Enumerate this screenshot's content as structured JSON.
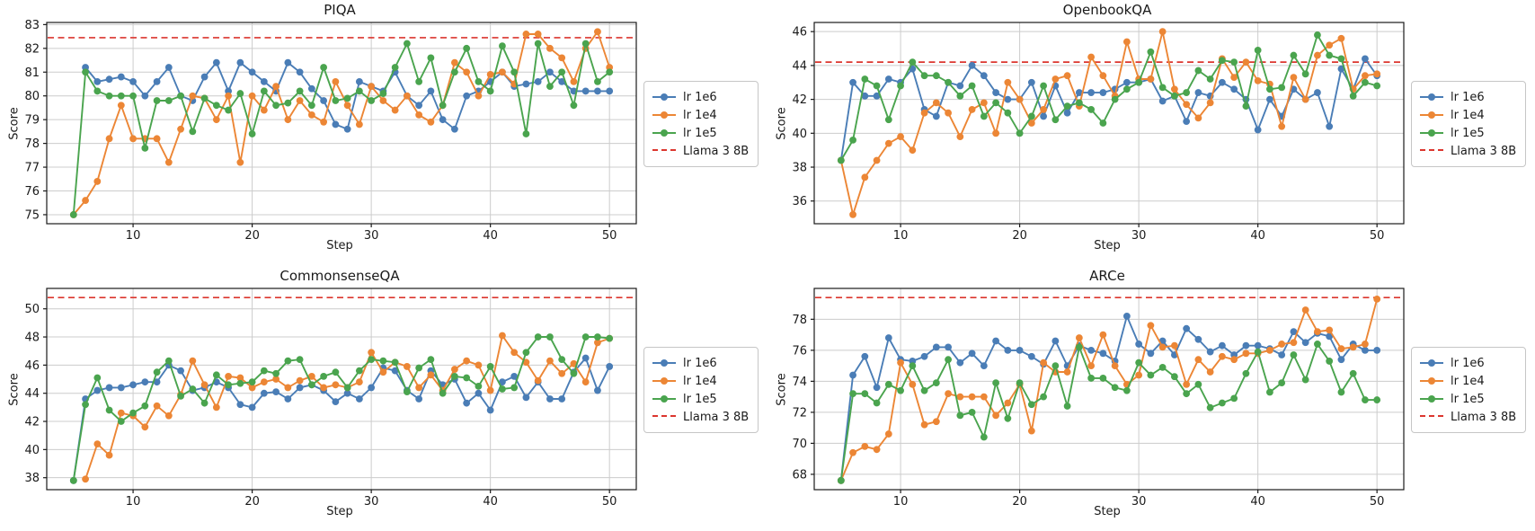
{
  "figure": {
    "background": "#ffffff"
  },
  "legend": {
    "entries": [
      {
        "label": "lr 1e6",
        "color": "#4a7db6",
        "type": "line-marker"
      },
      {
        "label": "lr 1e4",
        "color": "#ec8635",
        "type": "line-marker"
      },
      {
        "label": "lr 1e5",
        "color": "#4aa44e",
        "type": "line-marker"
      },
      {
        "label": "Llama 3 8B",
        "color": "#dc362e",
        "type": "dashed-line"
      }
    ]
  },
  "style": {
    "grid_color": "#cccccc",
    "spine_color": "#1a1a1a",
    "tick_label_color": "#1a1a1a"
  },
  "chart_data": [
    {
      "type": "line",
      "title": "PIQA",
      "xlabel": "Step",
      "ylabel": "Score",
      "x": {
        "start": 5,
        "end": 50,
        "step": 1
      },
      "xlim": [
        2.75,
        52.25
      ],
      "ylim": [
        74.62,
        83.09
      ],
      "xticks": [
        10,
        20,
        30,
        40,
        50
      ],
      "yticks": [
        75,
        76,
        77,
        78,
        79,
        80,
        81,
        82,
        83
      ],
      "baseline": {
        "label": "Llama 3 8B",
        "value": 82.45
      },
      "series": [
        {
          "name": "lr 1e6",
          "values": [
            null,
            81.2,
            80.6,
            80.7,
            80.8,
            80.6,
            80.0,
            80.6,
            81.2,
            80.0,
            79.8,
            80.8,
            81.4,
            80.2,
            81.4,
            81.0,
            80.6,
            80.2,
            81.4,
            81.0,
            80.3,
            79.8,
            78.8,
            78.6,
            80.6,
            80.4,
            80.2,
            81.0,
            80.0,
            79.6,
            80.2,
            79.0,
            78.6,
            80.0,
            80.2,
            80.6,
            81.0,
            80.4,
            80.5,
            80.6,
            81.0,
            80.6,
            80.2,
            80.2,
            80.2,
            80.2
          ]
        },
        {
          "name": "lr 1e4",
          "values": [
            75.0,
            75.6,
            76.4,
            78.2,
            79.6,
            78.2,
            78.2,
            78.2,
            77.2,
            78.6,
            80.0,
            79.9,
            79.0,
            80.0,
            77.2,
            80.0,
            79.4,
            80.4,
            79.0,
            79.8,
            79.2,
            78.9,
            80.6,
            79.6,
            78.8,
            80.4,
            79.8,
            79.4,
            80.0,
            79.2,
            78.9,
            79.6,
            81.4,
            81.0,
            80.0,
            80.9,
            81.0,
            80.5,
            82.6,
            82.6,
            82.0,
            81.6,
            80.6,
            82.0,
            82.7,
            81.2
          ]
        },
        {
          "name": "lr 1e5",
          "values": [
            75.0,
            81.0,
            80.2,
            80.0,
            80.0,
            80.0,
            77.8,
            79.8,
            79.8,
            80.0,
            78.5,
            79.9,
            79.6,
            79.4,
            80.1,
            78.4,
            80.2,
            79.6,
            79.7,
            80.2,
            79.6,
            81.2,
            79.8,
            79.9,
            80.2,
            79.8,
            80.1,
            81.2,
            82.2,
            80.6,
            81.6,
            79.6,
            81.0,
            82.0,
            80.6,
            80.2,
            82.1,
            81.0,
            78.4,
            82.2,
            80.4,
            81.0,
            79.6,
            82.2,
            80.6,
            81.0
          ]
        }
      ]
    },
    {
      "type": "line",
      "title": "OpenbookQA",
      "xlabel": "Step",
      "ylabel": "Score",
      "x": {
        "start": 5,
        "end": 50,
        "step": 1
      },
      "xlim": [
        2.75,
        52.25
      ],
      "ylim": [
        34.66,
        46.54
      ],
      "xticks": [
        10,
        20,
        30,
        40,
        50
      ],
      "yticks": [
        36,
        38,
        40,
        42,
        44,
        46
      ],
      "baseline": {
        "label": "Llama 3 8B",
        "value": 44.2
      },
      "series": [
        {
          "name": "lr 1e6",
          "values": [
            38.4,
            43.0,
            42.2,
            42.2,
            43.2,
            43.0,
            43.8,
            41.4,
            41.0,
            43.0,
            42.8,
            44.0,
            43.4,
            42.4,
            42.0,
            42.0,
            43.0,
            41.0,
            42.8,
            41.2,
            42.4,
            42.4,
            42.4,
            42.6,
            43.0,
            43.0,
            43.2,
            41.9,
            42.2,
            40.7,
            42.4,
            42.2,
            43.0,
            42.6,
            42.0,
            40.2,
            42.0,
            41.0,
            42.6,
            42.0,
            42.4,
            40.4,
            43.8,
            42.6,
            44.4,
            43.4
          ]
        },
        {
          "name": "lr 1e4",
          "values": [
            38.4,
            35.2,
            37.4,
            38.4,
            39.4,
            39.8,
            39.0,
            41.2,
            41.8,
            41.2,
            39.8,
            41.4,
            41.8,
            40.0,
            43.0,
            42.0,
            40.6,
            41.4,
            43.2,
            43.4,
            41.6,
            44.5,
            43.4,
            42.2,
            45.4,
            43.2,
            43.2,
            46.0,
            42.6,
            41.7,
            40.9,
            41.8,
            44.4,
            43.3,
            44.2,
            43.1,
            42.9,
            40.4,
            43.3,
            42.0,
            44.6,
            45.2,
            45.6,
            42.6,
            43.4,
            43.5
          ]
        },
        {
          "name": "lr 1e5",
          "values": [
            38.4,
            39.6,
            43.2,
            42.8,
            40.8,
            42.8,
            44.2,
            43.4,
            43.4,
            43.0,
            42.2,
            42.8,
            41.0,
            41.8,
            41.2,
            40.0,
            41.0,
            42.8,
            40.8,
            41.6,
            41.8,
            41.4,
            40.6,
            42.0,
            42.6,
            43.0,
            44.8,
            42.7,
            42.2,
            42.4,
            43.7,
            43.2,
            44.3,
            44.2,
            41.6,
            44.9,
            42.6,
            42.7,
            44.6,
            43.5,
            45.8,
            44.6,
            44.4,
            42.2,
            43.0,
            42.8
          ]
        }
      ]
    },
    {
      "type": "line",
      "title": "CommonsenseQA",
      "xlabel": "Step",
      "ylabel": "Score",
      "x": {
        "start": 5,
        "end": 50,
        "step": 1
      },
      "xlim": [
        2.75,
        52.25
      ],
      "ylim": [
        37.15,
        51.45
      ],
      "xticks": [
        10,
        20,
        30,
        40,
        50
      ],
      "yticks": [
        38,
        40,
        42,
        44,
        46,
        48,
        50
      ],
      "baseline": {
        "label": "Llama 3 8B",
        "value": 50.8
      },
      "series": [
        {
          "name": "lr 1e6",
          "values": [
            37.8,
            43.6,
            44.2,
            44.4,
            44.4,
            44.6,
            44.8,
            44.8,
            46.0,
            45.6,
            44.2,
            44.4,
            44.8,
            44.4,
            43.2,
            43.0,
            44.0,
            44.1,
            43.6,
            44.4,
            44.6,
            44.2,
            43.4,
            44.0,
            43.6,
            44.4,
            45.8,
            45.6,
            44.2,
            43.6,
            45.6,
            44.6,
            45.0,
            43.3,
            44.0,
            42.8,
            44.8,
            45.2,
            43.7,
            44.8,
            43.6,
            43.6,
            45.5,
            46.5,
            44.2,
            45.9
          ]
        },
        {
          "name": "lr 1e4",
          "values": [
            null,
            37.9,
            40.4,
            39.6,
            42.6,
            42.4,
            41.6,
            43.1,
            42.4,
            43.9,
            46.3,
            44.6,
            43.0,
            45.2,
            45.1,
            44.4,
            44.8,
            45.0,
            44.4,
            44.9,
            45.2,
            44.4,
            44.6,
            44.4,
            44.8,
            46.9,
            45.5,
            46.2,
            45.9,
            44.4,
            45.3,
            44.2,
            45.7,
            46.3,
            46.0,
            44.2,
            48.1,
            46.9,
            46.2,
            44.9,
            46.3,
            45.4,
            46.1,
            44.8,
            47.6,
            47.9
          ]
        },
        {
          "name": "lr 1e5",
          "values": [
            37.8,
            43.2,
            45.1,
            42.8,
            42.0,
            42.6,
            43.1,
            45.5,
            46.3,
            43.8,
            44.3,
            43.3,
            45.3,
            44.6,
            44.7,
            44.8,
            45.6,
            45.4,
            46.3,
            46.4,
            44.6,
            45.2,
            45.5,
            44.4,
            45.6,
            46.4,
            46.3,
            46.2,
            44.1,
            45.8,
            46.4,
            44.0,
            45.2,
            45.1,
            44.5,
            45.9,
            44.3,
            44.4,
            46.9,
            48.0,
            48.0,
            46.4,
            45.4,
            48.0,
            48.0,
            47.9
          ]
        }
      ]
    },
    {
      "type": "line",
      "title": "ARCe",
      "xlabel": "Step",
      "ylabel": "Score",
      "x": {
        "start": 5,
        "end": 50,
        "step": 1
      },
      "xlim": [
        2.75,
        52.25
      ],
      "ylim": [
        67.01,
        79.99
      ],
      "xticks": [
        10,
        20,
        30,
        40,
        50
      ],
      "yticks": [
        68,
        70,
        72,
        74,
        76,
        78
      ],
      "baseline": {
        "label": "Llama 3 8B",
        "value": 79.4
      },
      "series": [
        {
          "name": "lr 1e6",
          "values": [
            67.6,
            74.4,
            75.6,
            73.6,
            76.8,
            75.4,
            75.3,
            75.6,
            76.2,
            76.2,
            75.2,
            75.8,
            75.0,
            76.6,
            76.0,
            76.0,
            75.6,
            75.1,
            76.6,
            75.0,
            76.3,
            76.0,
            75.8,
            75.3,
            78.2,
            76.4,
            75.8,
            76.6,
            75.7,
            77.4,
            76.7,
            75.9,
            76.3,
            75.7,
            76.3,
            76.3,
            76.1,
            75.7,
            77.2,
            76.5,
            77.1,
            76.9,
            75.4,
            76.4,
            76.0,
            76.0
          ]
        },
        {
          "name": "lr 1e4",
          "values": [
            67.6,
            69.4,
            69.8,
            69.6,
            70.6,
            75.2,
            73.8,
            71.2,
            71.4,
            73.2,
            73.0,
            73.0,
            73.0,
            71.8,
            72.6,
            73.8,
            70.8,
            75.2,
            74.6,
            74.6,
            76.8,
            75.0,
            77.0,
            75.0,
            73.8,
            74.4,
            77.6,
            76.2,
            76.3,
            73.8,
            75.4,
            74.6,
            75.6,
            75.4,
            75.8,
            75.8,
            76.0,
            76.4,
            76.5,
            78.6,
            77.2,
            77.3,
            76.1,
            76.2,
            76.4,
            79.3
          ]
        },
        {
          "name": "lr 1e5",
          "values": [
            67.6,
            73.2,
            73.2,
            72.6,
            73.8,
            73.4,
            75.0,
            73.4,
            73.9,
            75.4,
            71.8,
            72.0,
            70.4,
            73.9,
            71.6,
            73.9,
            72.5,
            73.0,
            75.0,
            72.4,
            76.2,
            74.2,
            74.2,
            73.6,
            73.4,
            75.2,
            74.4,
            74.9,
            74.3,
            73.2,
            73.8,
            72.3,
            72.6,
            72.9,
            74.5,
            75.9,
            73.3,
            73.9,
            75.7,
            74.1,
            76.4,
            75.3,
            73.3,
            74.5,
            72.8,
            72.8
          ]
        }
      ]
    }
  ]
}
